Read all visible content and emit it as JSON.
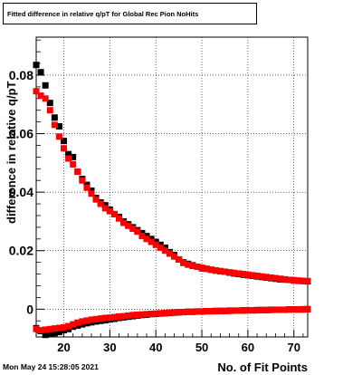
{
  "title": "Fitted difference in relative q/pT for Global Rec Pion NoHits",
  "timestamp": "Mon May 24 15:28:05 2021",
  "chart_data": {
    "type": "scatter",
    "title": "Fitted difference in relative q/pT for Global Rec Pion NoHits",
    "xlabel": "No. of Fit Points",
    "ylabel": "difference in relative q/pT",
    "xlim": [
      14,
      73
    ],
    "ylim": [
      -0.0095,
      0.093
    ],
    "xticks": [
      20,
      30,
      40,
      50,
      60,
      70
    ],
    "yticks": [
      0,
      0.02,
      0.04,
      0.06,
      0.08
    ],
    "ytick_labels": [
      "0",
      "0.02",
      "0.04",
      "0.06",
      "0.08"
    ],
    "grid": true,
    "series": [
      {
        "color": "#000000",
        "x": [
          14,
          15,
          16,
          17,
          18,
          19,
          20,
          21,
          22,
          23,
          24,
          25,
          26,
          27,
          28,
          29,
          30,
          31,
          32,
          33,
          34,
          35,
          36,
          37,
          38,
          39,
          40,
          41,
          42,
          43,
          44,
          45,
          46,
          47,
          48,
          49,
          50,
          51,
          52,
          53,
          54,
          55,
          56,
          57,
          58,
          59,
          60,
          61,
          62,
          63,
          64,
          65,
          66,
          67,
          68,
          69,
          70,
          71,
          72,
          73
        ],
        "y": [
          0.0835,
          0.081,
          0.0765,
          0.0705,
          0.0655,
          0.0625,
          0.0575,
          0.053,
          0.052,
          0.047,
          0.0445,
          0.0425,
          0.0405,
          0.038,
          0.0365,
          0.0355,
          0.034,
          0.0325,
          0.0315,
          0.03,
          0.029,
          0.028,
          0.027,
          0.026,
          0.025,
          0.024,
          0.023,
          0.022,
          0.021,
          0.0195,
          0.0185,
          0.017,
          0.016,
          0.0155,
          0.015,
          0.0145,
          0.014,
          0.0138,
          0.0135,
          0.0132,
          0.013,
          0.0128,
          0.0125,
          0.0122,
          0.012,
          0.0118,
          0.0116,
          0.0114,
          0.0112,
          0.011,
          0.0108,
          0.0106,
          0.0104,
          0.0102,
          0.0101,
          0.01,
          0.0098,
          0.0097,
          0.0096,
          0.0095
        ]
      },
      {
        "color": "#ff0000",
        "x": [
          14,
          15,
          16,
          17,
          18,
          19,
          20,
          21,
          22,
          23,
          24,
          25,
          26,
          27,
          28,
          29,
          30,
          31,
          32,
          33,
          34,
          35,
          36,
          37,
          38,
          39,
          40,
          41,
          42,
          43,
          44,
          45,
          46,
          47,
          48,
          49,
          50,
          51,
          52,
          53,
          54,
          55,
          56,
          57,
          58,
          59,
          60,
          61,
          62,
          63,
          64,
          65,
          66,
          67,
          68,
          69,
          70,
          71,
          72,
          73
        ],
        "y": [
          0.0745,
          0.073,
          0.072,
          0.068,
          0.063,
          0.059,
          0.055,
          0.0515,
          0.0495,
          0.047,
          0.044,
          0.0415,
          0.0395,
          0.0375,
          0.036,
          0.0345,
          0.0335,
          0.0325,
          0.031,
          0.0295,
          0.0285,
          0.0275,
          0.0265,
          0.025,
          0.024,
          0.023,
          0.022,
          0.021,
          0.02,
          0.019,
          0.018,
          0.017,
          0.0158,
          0.0152,
          0.0148,
          0.0145,
          0.0142,
          0.0138,
          0.0135,
          0.0132,
          0.013,
          0.0128,
          0.0126,
          0.0124,
          0.0122,
          0.012,
          0.0118,
          0.0116,
          0.0114,
          0.0112,
          0.011,
          0.0108,
          0.0106,
          0.0104,
          0.0102,
          0.01,
          0.0099,
          0.0098,
          0.0097,
          0.0096
        ]
      },
      {
        "color": "#000000",
        "x": [
          14,
          15,
          16,
          17,
          18,
          19,
          20,
          21,
          22,
          23,
          24,
          25,
          26,
          27,
          28,
          29,
          30,
          31,
          32,
          33,
          34,
          35,
          36,
          37,
          38,
          39,
          40,
          41,
          42,
          43,
          44,
          45,
          46,
          47,
          48,
          49,
          50,
          51,
          52,
          53,
          54,
          55,
          56,
          57,
          58,
          59,
          60,
          61,
          62,
          63,
          64,
          65,
          66,
          67,
          68,
          69,
          70,
          71,
          72,
          73
        ],
        "y": [
          -0.0065,
          -0.0075,
          -0.0088,
          -0.0085,
          -0.0082,
          -0.0078,
          -0.0072,
          -0.0068,
          -0.006,
          -0.0056,
          -0.0052,
          -0.0048,
          -0.0045,
          -0.0042,
          -0.004,
          -0.0038,
          -0.0035,
          -0.0033,
          -0.003,
          -0.0028,
          -0.0026,
          -0.0024,
          -0.0022,
          -0.002,
          -0.0019,
          -0.0017,
          -0.0016,
          -0.0015,
          -0.0014,
          -0.0013,
          -0.0012,
          -0.0011,
          -0.001,
          -0.0009,
          -0.0009,
          -0.0008,
          -0.0008,
          -0.0007,
          -0.0007,
          -0.0006,
          -0.0006,
          -0.0006,
          -0.0005,
          -0.0005,
          -0.0005,
          -0.0004,
          -0.0004,
          -0.0004,
          -0.0003,
          -0.0003,
          -0.0003,
          -0.0002,
          -0.0002,
          -0.0002,
          -0.0002,
          -0.0001,
          -0.0001,
          -0.0001,
          -0.0001,
          0.0
        ]
      },
      {
        "color": "#ff0000",
        "x": [
          14,
          15,
          16,
          17,
          18,
          19,
          20,
          21,
          22,
          23,
          24,
          25,
          26,
          27,
          28,
          29,
          30,
          31,
          32,
          33,
          34,
          35,
          36,
          37,
          38,
          39,
          40,
          41,
          42,
          43,
          44,
          45,
          46,
          47,
          48,
          49,
          50,
          51,
          52,
          53,
          54,
          55,
          56,
          57,
          58,
          59,
          60,
          61,
          62,
          63,
          64,
          65,
          66,
          67,
          68,
          69,
          70,
          71,
          72,
          73
        ],
        "y": [
          -0.0068,
          -0.0072,
          -0.007,
          -0.0068,
          -0.0066,
          -0.0064,
          -0.0062,
          -0.0058,
          -0.0052,
          -0.0046,
          -0.0042,
          -0.0039,
          -0.0036,
          -0.0034,
          -0.0032,
          -0.003,
          -0.0029,
          -0.0027,
          -0.0025,
          -0.0024,
          -0.0022,
          -0.002,
          -0.0019,
          -0.0018,
          -0.0017,
          -0.0016,
          -0.0015,
          -0.0014,
          -0.0013,
          -0.0012,
          -0.0011,
          -0.001,
          -0.001,
          -0.0009,
          -0.0009,
          -0.0008,
          -0.0008,
          -0.0007,
          -0.0007,
          -0.0007,
          -0.0006,
          -0.0006,
          -0.0006,
          -0.0005,
          -0.0005,
          -0.0005,
          -0.0004,
          -0.0004,
          -0.0004,
          -0.0003,
          -0.0003,
          -0.0003,
          -0.0002,
          -0.0002,
          -0.0002,
          -0.0001,
          -0.0001,
          -0.0001,
          0.0,
          0.0
        ]
      }
    ]
  }
}
